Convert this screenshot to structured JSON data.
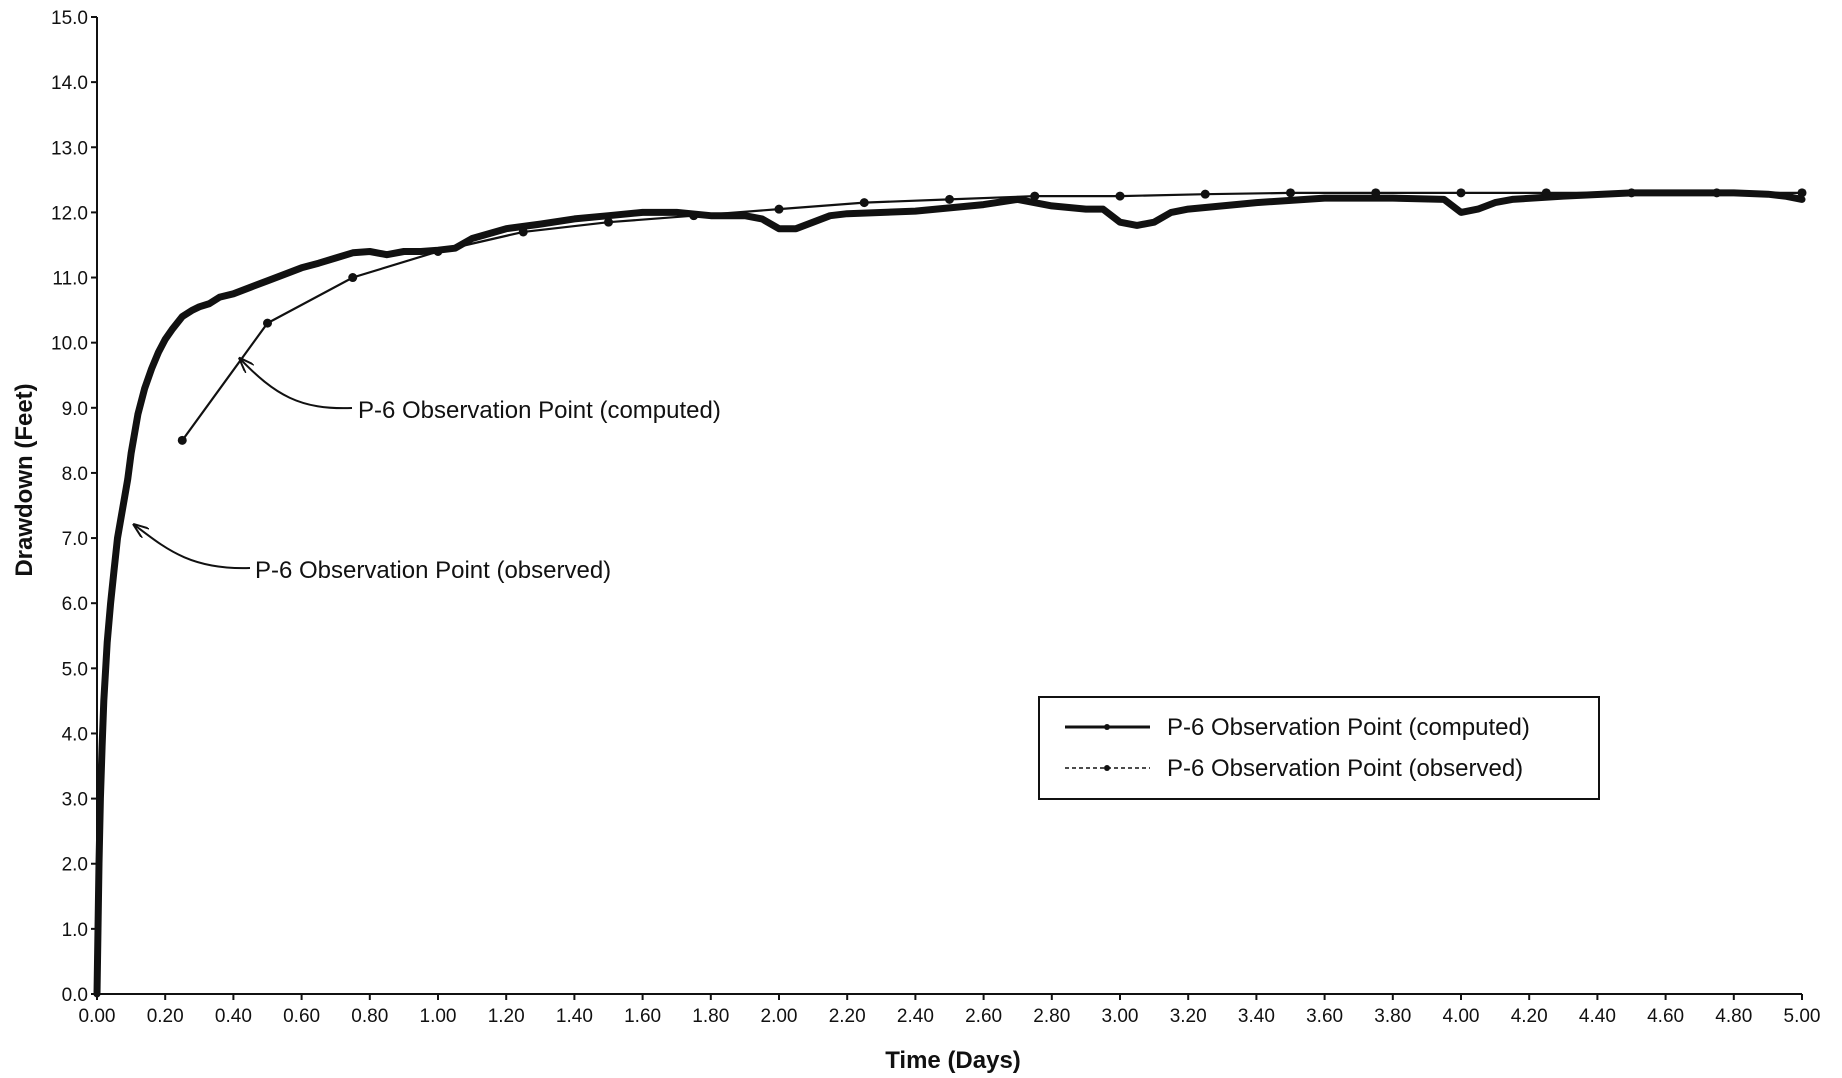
{
  "chart_data": {
    "type": "line",
    "xlabel": "Time (Days)",
    "ylabel": "Drawdown (Feet)",
    "xlim": [
      0,
      5
    ],
    "ylim": [
      0,
      15
    ],
    "x_ticks": [
      "0.00",
      "0.20",
      "0.40",
      "0.60",
      "0.80",
      "1.00",
      "1.20",
      "1.40",
      "1.60",
      "1.80",
      "2.00",
      "2.20",
      "2.40",
      "2.60",
      "2.80",
      "3.00",
      "3.20",
      "3.40",
      "3.60",
      "3.80",
      "4.00",
      "4.20",
      "4.40",
      "4.60",
      "4.80",
      "5.00"
    ],
    "y_ticks": [
      "0.0",
      "1.0",
      "2.0",
      "3.0",
      "4.0",
      "5.0",
      "6.0",
      "7.0",
      "8.0",
      "9.0",
      "10.0",
      "11.0",
      "12.0",
      "13.0",
      "14.0",
      "15.0"
    ],
    "grid": false,
    "legend_position": "lower-right",
    "series": [
      {
        "name": "P-6 Observation Point (computed)",
        "style": "thin line with point markers",
        "color": "#111111",
        "x": [
          0.25,
          0.5,
          0.75,
          1.0,
          1.25,
          1.5,
          1.75,
          2.0,
          2.25,
          2.5,
          2.75,
          3.0,
          3.25,
          3.5,
          3.75,
          4.0,
          4.25,
          4.5,
          4.75,
          5.0
        ],
        "y": [
          8.5,
          10.3,
          11.0,
          11.4,
          11.7,
          11.85,
          11.95,
          12.05,
          12.15,
          12.2,
          12.25,
          12.25,
          12.28,
          12.3,
          12.3,
          12.3,
          12.3,
          12.3,
          12.3,
          12.3
        ]
      },
      {
        "name": "P-6 Observation Point (observed)",
        "style": "thick dense dotted line",
        "color": "#111111",
        "x": [
          0.0,
          0.003,
          0.006,
          0.01,
          0.015,
          0.02,
          0.03,
          0.04,
          0.05,
          0.06,
          0.07,
          0.08,
          0.09,
          0.1,
          0.12,
          0.14,
          0.16,
          0.18,
          0.2,
          0.22,
          0.25,
          0.28,
          0.3,
          0.33,
          0.36,
          0.4,
          0.45,
          0.5,
          0.55,
          0.6,
          0.65,
          0.7,
          0.75,
          0.8,
          0.85,
          0.9,
          0.95,
          1.0,
          1.05,
          1.1,
          1.2,
          1.3,
          1.4,
          1.5,
          1.6,
          1.7,
          1.8,
          1.9,
          1.95,
          2.0,
          2.05,
          2.1,
          2.15,
          2.2,
          2.4,
          2.6,
          2.7,
          2.8,
          2.9,
          2.95,
          3.0,
          3.05,
          3.1,
          3.15,
          3.2,
          3.4,
          3.6,
          3.8,
          3.95,
          4.0,
          4.05,
          4.1,
          4.15,
          4.3,
          4.5,
          4.7,
          4.8,
          4.9,
          4.95,
          5.0
        ],
        "y": [
          0.0,
          1.0,
          2.0,
          3.0,
          3.8,
          4.5,
          5.4,
          6.0,
          6.5,
          7.0,
          7.3,
          7.6,
          7.9,
          8.3,
          8.9,
          9.3,
          9.6,
          9.85,
          10.05,
          10.2,
          10.4,
          10.5,
          10.55,
          10.6,
          10.7,
          10.75,
          10.85,
          10.95,
          11.05,
          11.15,
          11.22,
          11.3,
          11.38,
          11.4,
          11.35,
          11.4,
          11.4,
          11.42,
          11.45,
          11.6,
          11.75,
          11.82,
          11.9,
          11.95,
          12.0,
          12.0,
          11.95,
          11.95,
          11.9,
          11.75,
          11.75,
          11.85,
          11.95,
          11.98,
          12.02,
          12.12,
          12.2,
          12.1,
          12.05,
          12.05,
          11.85,
          11.8,
          11.85,
          12.0,
          12.05,
          12.15,
          12.22,
          12.22,
          12.2,
          12.0,
          12.05,
          12.15,
          12.2,
          12.25,
          12.3,
          12.3,
          12.3,
          12.28,
          12.25,
          12.2
        ]
      }
    ],
    "annotations": [
      {
        "text": "P-6 Observation Point (computed)",
        "points_to": {
          "x": 0.42,
          "y": 9.75
        }
      },
      {
        "text": "P-6 Observation Point (observed)",
        "points_to": {
          "x": 0.11,
          "y": 7.2
        }
      }
    ]
  }
}
